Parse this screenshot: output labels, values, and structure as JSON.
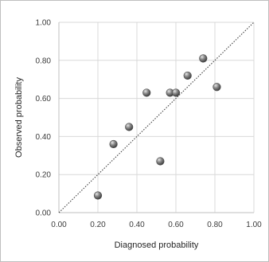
{
  "chart_data": {
    "type": "scatter",
    "title": "",
    "xlabel": "Diagnosed probability",
    "ylabel": "Observed probability",
    "xlim": [
      0,
      1
    ],
    "ylim": [
      0,
      1
    ],
    "x_ticks": [
      "0.00",
      "0.20",
      "0.40",
      "0.60",
      "0.80",
      "1.00"
    ],
    "y_ticks": [
      "0.00",
      "0.20",
      "0.40",
      "0.60",
      "0.80",
      "1.00"
    ],
    "grid": true,
    "reference_line": {
      "style": "dotted",
      "from": [
        0,
        0
      ],
      "to": [
        1,
        1
      ]
    },
    "series": [
      {
        "points": [
          {
            "x": 0.2,
            "y": 0.09
          },
          {
            "x": 0.28,
            "y": 0.36
          },
          {
            "x": 0.36,
            "y": 0.45
          },
          {
            "x": 0.45,
            "y": 0.63
          },
          {
            "x": 0.52,
            "y": 0.27
          },
          {
            "x": 0.57,
            "y": 0.63
          },
          {
            "x": 0.6,
            "y": 0.63
          },
          {
            "x": 0.66,
            "y": 0.72
          },
          {
            "x": 0.74,
            "y": 0.81
          },
          {
            "x": 0.81,
            "y": 0.66
          }
        ]
      }
    ],
    "colors": {
      "marker": "#7f7f7f",
      "grid": "#d9d9d9",
      "reference_line": "#404040"
    }
  }
}
